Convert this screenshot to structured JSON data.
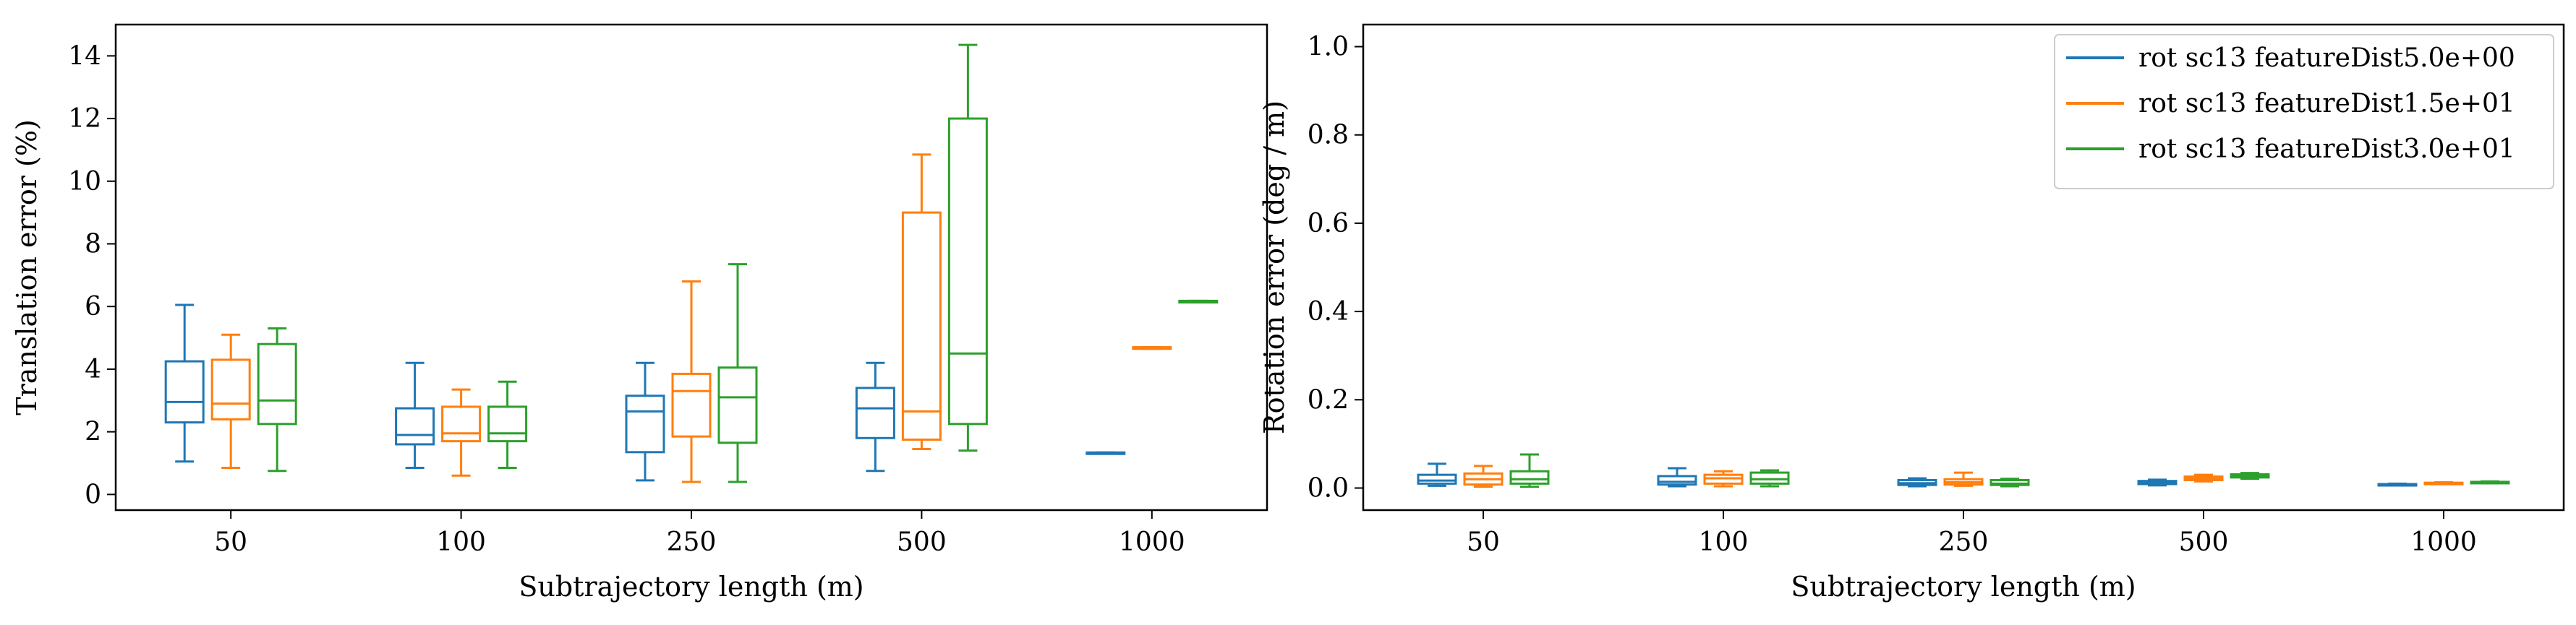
{
  "colors": {
    "series": [
      "#1f77b4",
      "#ff7f0e",
      "#2ca02c"
    ],
    "legend_border": "#cccccc"
  },
  "chart_data": [
    {
      "type": "box",
      "xlabel": "Subtrajectory length (m)",
      "ylabel": "Translation error (%)",
      "ylim": [
        -0.5,
        15.0
      ],
      "yticks": [
        0,
        2,
        4,
        6,
        8,
        10,
        12,
        14
      ],
      "categories": [
        "50",
        "100",
        "250",
        "500",
        "1000"
      ],
      "series": [
        {
          "boxes": [
            {
              "whislo": 1.05,
              "q1": 2.3,
              "med": 2.95,
              "q3": 4.25,
              "whishi": 6.05
            },
            {
              "whislo": 0.85,
              "q1": 1.6,
              "med": 1.9,
              "q3": 2.75,
              "whishi": 4.2
            },
            {
              "whislo": 0.45,
              "q1": 1.35,
              "med": 2.65,
              "q3": 3.15,
              "whishi": 4.2
            },
            {
              "whislo": 0.75,
              "q1": 1.8,
              "med": 2.75,
              "q3": 3.4,
              "whishi": 4.2
            },
            {
              "whislo": 1.3,
              "q1": 1.3,
              "med": 1.32,
              "q3": 1.34,
              "whishi": 1.34
            }
          ]
        },
        {
          "boxes": [
            {
              "whislo": 0.85,
              "q1": 2.4,
              "med": 2.9,
              "q3": 4.3,
              "whishi": 5.1
            },
            {
              "whislo": 0.6,
              "q1": 1.7,
              "med": 1.95,
              "q3": 2.8,
              "whishi": 3.35
            },
            {
              "whislo": 0.4,
              "q1": 1.85,
              "med": 3.3,
              "q3": 3.85,
              "whishi": 6.8
            },
            {
              "whislo": 1.45,
              "q1": 1.75,
              "med": 2.65,
              "q3": 9.0,
              "whishi": 10.85
            },
            {
              "whislo": 4.65,
              "q1": 4.65,
              "med": 4.68,
              "q3": 4.7,
              "whishi": 4.7
            }
          ]
        },
        {
          "boxes": [
            {
              "whislo": 0.75,
              "q1": 2.25,
              "med": 3.0,
              "q3": 4.8,
              "whishi": 5.3
            },
            {
              "whislo": 0.85,
              "q1": 1.7,
              "med": 1.95,
              "q3": 2.8,
              "whishi": 3.6
            },
            {
              "whislo": 0.4,
              "q1": 1.65,
              "med": 3.1,
              "q3": 4.05,
              "whishi": 7.35
            },
            {
              "whislo": 1.4,
              "q1": 2.25,
              "med": 4.5,
              "q3": 12.0,
              "whishi": 14.35
            },
            {
              "whislo": 6.13,
              "q1": 6.13,
              "med": 6.16,
              "q3": 6.18,
              "whishi": 6.18
            }
          ]
        }
      ]
    },
    {
      "type": "box",
      "xlabel": "Subtrajectory length (m)",
      "ylabel": "Rotation error (deg / m)",
      "ylim": [
        -0.05,
        1.05
      ],
      "yticks": [
        0.0,
        0.2,
        0.4,
        0.6,
        0.8,
        1.0
      ],
      "ytick_labels": [
        "0.0",
        "0.2",
        "0.4",
        "0.6",
        "0.8",
        "1.0"
      ],
      "categories": [
        "50",
        "100",
        "250",
        "500",
        "1000"
      ],
      "legend": "top-right",
      "series": [
        {
          "name": "rot sc13 featureDist5.0e+00",
          "boxes": [
            {
              "whislo": 0.005,
              "q1": 0.01,
              "med": 0.017,
              "q3": 0.03,
              "whishi": 0.055
            },
            {
              "whislo": 0.004,
              "q1": 0.008,
              "med": 0.014,
              "q3": 0.027,
              "whishi": 0.045
            },
            {
              "whislo": 0.004,
              "q1": 0.007,
              "med": 0.011,
              "q3": 0.018,
              "whishi": 0.022
            },
            {
              "whislo": 0.006,
              "q1": 0.009,
              "med": 0.012,
              "q3": 0.016,
              "whishi": 0.019
            },
            {
              "whislo": 0.006,
              "q1": 0.007,
              "med": 0.008,
              "q3": 0.009,
              "whishi": 0.01
            }
          ]
        },
        {
          "name": "rot sc13 featureDist1.5e+01",
          "boxes": [
            {
              "whislo": 0.003,
              "q1": 0.008,
              "med": 0.02,
              "q3": 0.033,
              "whishi": 0.05
            },
            {
              "whislo": 0.004,
              "q1": 0.01,
              "med": 0.022,
              "q3": 0.03,
              "whishi": 0.038
            },
            {
              "whislo": 0.005,
              "q1": 0.008,
              "med": 0.013,
              "q3": 0.02,
              "whishi": 0.035
            },
            {
              "whislo": 0.015,
              "q1": 0.018,
              "med": 0.022,
              "q3": 0.026,
              "whishi": 0.03
            },
            {
              "whislo": 0.009,
              "q1": 0.01,
              "med": 0.011,
              "q3": 0.012,
              "whishi": 0.013
            }
          ]
        },
        {
          "name": "rot sc13 featureDist3.0e+01",
          "boxes": [
            {
              "whislo": 0.003,
              "q1": 0.01,
              "med": 0.02,
              "q3": 0.038,
              "whishi": 0.076
            },
            {
              "whislo": 0.004,
              "q1": 0.01,
              "med": 0.02,
              "q3": 0.035,
              "whishi": 0.04
            },
            {
              "whislo": 0.004,
              "q1": 0.007,
              "med": 0.01,
              "q3": 0.018,
              "whishi": 0.021
            },
            {
              "whislo": 0.021,
              "q1": 0.024,
              "med": 0.027,
              "q3": 0.031,
              "whishi": 0.034
            },
            {
              "whislo": 0.011,
              "q1": 0.012,
              "med": 0.013,
              "q3": 0.014,
              "whishi": 0.015
            }
          ]
        }
      ]
    }
  ]
}
